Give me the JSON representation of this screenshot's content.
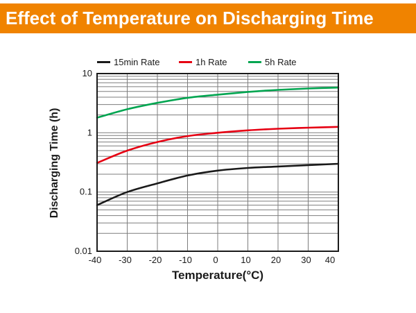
{
  "header": {
    "title": "Effect of Temperature on Discharging Time",
    "bg_color": "#F08300",
    "text_color": "#FFFFFF"
  },
  "chart_data": {
    "type": "line",
    "xlabel": "Temperature(°C)",
    "ylabel": "Discharging Time (h)",
    "x_scale": "linear",
    "y_scale": "log",
    "xlim": [
      -40,
      40
    ],
    "ylim": [
      0.01,
      10
    ],
    "x_ticks": [
      -40,
      -30,
      -20,
      -10,
      0,
      10,
      20,
      30,
      40
    ],
    "y_ticks": [
      10,
      1,
      0.1,
      0.01
    ],
    "y_tick_labels": [
      "10",
      "1",
      "0.1",
      "0.01"
    ],
    "grid": true,
    "legend_position": "top",
    "x": [
      -40,
      -30,
      -20,
      -10,
      0,
      10,
      20,
      30,
      40
    ],
    "series": [
      {
        "name": "15min Rate",
        "color": "#1A1A1A",
        "values": [
          0.06,
          0.1,
          0.14,
          0.19,
          0.23,
          0.255,
          0.27,
          0.285,
          0.3
        ]
      },
      {
        "name": "1h Rate",
        "color": "#E60012",
        "values": [
          0.31,
          0.5,
          0.7,
          0.88,
          1.0,
          1.1,
          1.17,
          1.22,
          1.26
        ]
      },
      {
        "name": "5h Rate",
        "color": "#00A550",
        "values": [
          1.8,
          2.5,
          3.2,
          3.9,
          4.4,
          4.9,
          5.3,
          5.6,
          5.8
        ]
      }
    ]
  },
  "colors": {
    "grid": "#7d7d7d",
    "border": "#1a1a1a",
    "tick_text": "#1a1a1a"
  }
}
